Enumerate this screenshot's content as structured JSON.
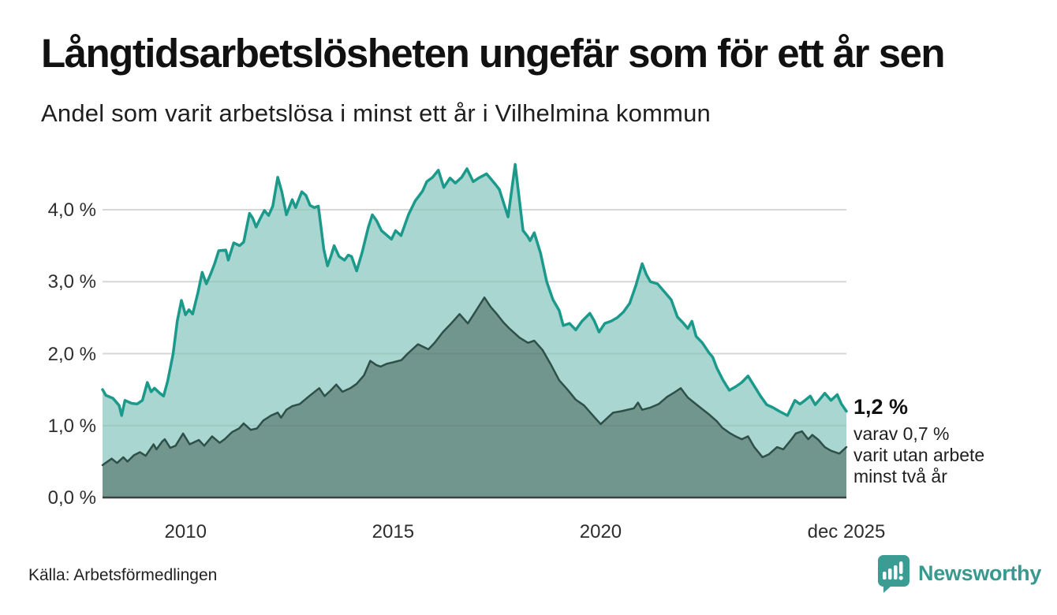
{
  "title": "Långtidsarbetslösheten ungefär som för ett år sen",
  "subtitle": "Andel som varit arbetslösa i minst ett år i Vilhelmina kommun",
  "source": "Källa: Arbetsförmedlingen",
  "annotation": {
    "headline": "1,2 %",
    "line1": "varav 0,7 %",
    "line2": "varit utan arbete",
    "line3": "minst två år"
  },
  "logo": {
    "wordmark": "Newsworthy"
  },
  "colors": {
    "accent_teal": "#1b9a8c",
    "light_fill": "#a9d6d0",
    "dark_fill": "#71968e",
    "dark_line": "#2f4f49",
    "grid": "#e4e4e4",
    "baseline": "#3f3f3f",
    "logo_teal": "#3b9c93"
  },
  "chart_data": {
    "type": "area",
    "title": "Långtidsarbetslösheten ungefär som för ett år sen",
    "subtitle": "Andel som varit arbetslösa i minst ett år i Vilhelmina kommun",
    "x_unit": "decimal_year",
    "y_unit": "percent",
    "xlim": [
      2008.0,
      2025.92
    ],
    "ylim": [
      0,
      4.75
    ],
    "grid": true,
    "legend": false,
    "resolution_note": "monthly series, values estimated from plot",
    "last_point_label": "1,2 %",
    "last_point_secondary": "0,7 %",
    "yticks": [
      {
        "value": 0,
        "label": "0,0 %"
      },
      {
        "value": 1,
        "label": "1,0 %"
      },
      {
        "value": 2,
        "label": "2,0 %"
      },
      {
        "value": 3,
        "label": "3,0 %"
      },
      {
        "value": 4,
        "label": "4,0 %"
      }
    ],
    "xticks": [
      {
        "value": 2010,
        "label": "2010"
      },
      {
        "value": 2015,
        "label": "2015"
      },
      {
        "value": 2020,
        "label": "2020"
      },
      {
        "value": 2025.92,
        "label": "dec 2025"
      }
    ],
    "series": [
      {
        "id": "min_one_year",
        "name": "Arbetslösa minst ett år",
        "line_color": "#1b9a8c",
        "fill_color": "#a9d6d0",
        "line_width": 3.5,
        "points": [
          [
            2008.0,
            1.5
          ],
          [
            2008.08,
            1.42
          ],
          [
            2008.25,
            1.38
          ],
          [
            2008.4,
            1.28
          ],
          [
            2008.46,
            1.14
          ],
          [
            2008.54,
            1.35
          ],
          [
            2008.7,
            1.31
          ],
          [
            2008.83,
            1.3
          ],
          [
            2008.96,
            1.35
          ],
          [
            2009.08,
            1.6
          ],
          [
            2009.17,
            1.47
          ],
          [
            2009.25,
            1.52
          ],
          [
            2009.38,
            1.45
          ],
          [
            2009.47,
            1.41
          ],
          [
            2009.57,
            1.62
          ],
          [
            2009.7,
            2.0
          ],
          [
            2009.8,
            2.45
          ],
          [
            2009.9,
            2.74
          ],
          [
            2010.0,
            2.54
          ],
          [
            2010.08,
            2.61
          ],
          [
            2010.17,
            2.55
          ],
          [
            2010.3,
            2.85
          ],
          [
            2010.4,
            3.13
          ],
          [
            2010.5,
            2.97
          ],
          [
            2010.6,
            3.1
          ],
          [
            2010.7,
            3.25
          ],
          [
            2010.8,
            3.43
          ],
          [
            2010.97,
            3.44
          ],
          [
            2011.03,
            3.3
          ],
          [
            2011.16,
            3.54
          ],
          [
            2011.3,
            3.5
          ],
          [
            2011.4,
            3.55
          ],
          [
            2011.54,
            3.95
          ],
          [
            2011.62,
            3.88
          ],
          [
            2011.7,
            3.76
          ],
          [
            2011.8,
            3.88
          ],
          [
            2011.9,
            3.99
          ],
          [
            2012.0,
            3.92
          ],
          [
            2012.1,
            4.05
          ],
          [
            2012.22,
            4.45
          ],
          [
            2012.32,
            4.25
          ],
          [
            2012.43,
            3.93
          ],
          [
            2012.57,
            4.14
          ],
          [
            2012.65,
            4.03
          ],
          [
            2012.8,
            4.25
          ],
          [
            2012.9,
            4.2
          ],
          [
            2013.0,
            4.06
          ],
          [
            2013.1,
            4.03
          ],
          [
            2013.2,
            4.05
          ],
          [
            2013.33,
            3.45
          ],
          [
            2013.42,
            3.22
          ],
          [
            2013.5,
            3.35
          ],
          [
            2013.58,
            3.5
          ],
          [
            2013.7,
            3.35
          ],
          [
            2013.83,
            3.3
          ],
          [
            2013.92,
            3.37
          ],
          [
            2014.0,
            3.35
          ],
          [
            2014.12,
            3.15
          ],
          [
            2014.25,
            3.4
          ],
          [
            2014.4,
            3.75
          ],
          [
            2014.5,
            3.93
          ],
          [
            2014.6,
            3.85
          ],
          [
            2014.72,
            3.71
          ],
          [
            2014.96,
            3.59
          ],
          [
            2015.06,
            3.71
          ],
          [
            2015.19,
            3.64
          ],
          [
            2015.37,
            3.93
          ],
          [
            2015.53,
            4.12
          ],
          [
            2015.71,
            4.26
          ],
          [
            2015.81,
            4.39
          ],
          [
            2015.95,
            4.45
          ],
          [
            2016.09,
            4.55
          ],
          [
            2016.22,
            4.31
          ],
          [
            2016.37,
            4.44
          ],
          [
            2016.5,
            4.37
          ],
          [
            2016.65,
            4.45
          ],
          [
            2016.78,
            4.57
          ],
          [
            2016.93,
            4.39
          ],
          [
            2017.06,
            4.44
          ],
          [
            2017.25,
            4.5
          ],
          [
            2017.47,
            4.35
          ],
          [
            2017.56,
            4.28
          ],
          [
            2017.77,
            3.9
          ],
          [
            2017.94,
            4.63
          ],
          [
            2018.13,
            3.71
          ],
          [
            2018.24,
            3.63
          ],
          [
            2018.3,
            3.57
          ],
          [
            2018.4,
            3.68
          ],
          [
            2018.55,
            3.4
          ],
          [
            2018.7,
            3.0
          ],
          [
            2018.85,
            2.75
          ],
          [
            2019.0,
            2.6
          ],
          [
            2019.1,
            2.39
          ],
          [
            2019.25,
            2.42
          ],
          [
            2019.4,
            2.33
          ],
          [
            2019.55,
            2.45
          ],
          [
            2019.74,
            2.56
          ],
          [
            2019.85,
            2.45
          ],
          [
            2019.96,
            2.3
          ],
          [
            2020.1,
            2.42
          ],
          [
            2020.25,
            2.45
          ],
          [
            2020.4,
            2.5
          ],
          [
            2020.55,
            2.58
          ],
          [
            2020.7,
            2.7
          ],
          [
            2020.85,
            2.95
          ],
          [
            2021.0,
            3.25
          ],
          [
            2021.1,
            3.1
          ],
          [
            2021.2,
            3.0
          ],
          [
            2021.37,
            2.97
          ],
          [
            2021.55,
            2.85
          ],
          [
            2021.7,
            2.75
          ],
          [
            2021.85,
            2.51
          ],
          [
            2022.0,
            2.42
          ],
          [
            2022.1,
            2.35
          ],
          [
            2022.2,
            2.45
          ],
          [
            2022.3,
            2.24
          ],
          [
            2022.45,
            2.15
          ],
          [
            2022.6,
            2.02
          ],
          [
            2022.7,
            1.95
          ],
          [
            2022.8,
            1.8
          ],
          [
            2022.95,
            1.63
          ],
          [
            2023.1,
            1.49
          ],
          [
            2023.25,
            1.54
          ],
          [
            2023.4,
            1.6
          ],
          [
            2023.55,
            1.69
          ],
          [
            2023.7,
            1.55
          ],
          [
            2023.85,
            1.41
          ],
          [
            2024.0,
            1.29
          ],
          [
            2024.15,
            1.25
          ],
          [
            2024.3,
            1.2
          ],
          [
            2024.5,
            1.14
          ],
          [
            2024.68,
            1.35
          ],
          [
            2024.8,
            1.3
          ],
          [
            2024.9,
            1.34
          ],
          [
            2025.05,
            1.41
          ],
          [
            2025.17,
            1.29
          ],
          [
            2025.3,
            1.38
          ],
          [
            2025.4,
            1.45
          ],
          [
            2025.55,
            1.35
          ],
          [
            2025.7,
            1.43
          ],
          [
            2025.8,
            1.3
          ],
          [
            2025.92,
            1.2
          ]
        ]
      },
      {
        "id": "min_two_years",
        "name": "varav arbetslösa minst två år",
        "line_color": "#2f4f49",
        "fill_color": "#71968e",
        "line_width": 2.5,
        "points": [
          [
            2008.0,
            0.45
          ],
          [
            2008.22,
            0.54
          ],
          [
            2008.35,
            0.48
          ],
          [
            2008.5,
            0.56
          ],
          [
            2008.6,
            0.5
          ],
          [
            2008.76,
            0.59
          ],
          [
            2008.9,
            0.63
          ],
          [
            2009.04,
            0.58
          ],
          [
            2009.23,
            0.74
          ],
          [
            2009.3,
            0.67
          ],
          [
            2009.44,
            0.78
          ],
          [
            2009.5,
            0.81
          ],
          [
            2009.63,
            0.69
          ],
          [
            2009.76,
            0.72
          ],
          [
            2009.94,
            0.89
          ],
          [
            2010.1,
            0.74
          ],
          [
            2010.32,
            0.8
          ],
          [
            2010.45,
            0.72
          ],
          [
            2010.64,
            0.85
          ],
          [
            2010.82,
            0.76
          ],
          [
            2010.94,
            0.81
          ],
          [
            2011.12,
            0.91
          ],
          [
            2011.29,
            0.96
          ],
          [
            2011.4,
            1.03
          ],
          [
            2011.57,
            0.94
          ],
          [
            2011.72,
            0.96
          ],
          [
            2011.87,
            1.07
          ],
          [
            2012.06,
            1.14
          ],
          [
            2012.22,
            1.18
          ],
          [
            2012.3,
            1.11
          ],
          [
            2012.43,
            1.22
          ],
          [
            2012.57,
            1.27
          ],
          [
            2012.75,
            1.3
          ],
          [
            2012.98,
            1.41
          ],
          [
            2013.22,
            1.52
          ],
          [
            2013.35,
            1.41
          ],
          [
            2013.5,
            1.49
          ],
          [
            2013.63,
            1.57
          ],
          [
            2013.78,
            1.47
          ],
          [
            2013.97,
            1.52
          ],
          [
            2014.12,
            1.58
          ],
          [
            2014.3,
            1.7
          ],
          [
            2014.45,
            1.9
          ],
          [
            2014.6,
            1.84
          ],
          [
            2014.7,
            1.82
          ],
          [
            2014.85,
            1.86
          ],
          [
            2015.0,
            1.88
          ],
          [
            2015.2,
            1.91
          ],
          [
            2015.35,
            2.0
          ],
          [
            2015.6,
            2.13
          ],
          [
            2015.85,
            2.06
          ],
          [
            2016.0,
            2.15
          ],
          [
            2016.2,
            2.3
          ],
          [
            2016.4,
            2.42
          ],
          [
            2016.6,
            2.55
          ],
          [
            2016.8,
            2.42
          ],
          [
            2017.0,
            2.6
          ],
          [
            2017.2,
            2.78
          ],
          [
            2017.35,
            2.65
          ],
          [
            2017.5,
            2.55
          ],
          [
            2017.65,
            2.44
          ],
          [
            2017.8,
            2.35
          ],
          [
            2018.05,
            2.22
          ],
          [
            2018.25,
            2.15
          ],
          [
            2018.4,
            2.18
          ],
          [
            2018.6,
            2.05
          ],
          [
            2018.8,
            1.85
          ],
          [
            2019.0,
            1.63
          ],
          [
            2019.2,
            1.5
          ],
          [
            2019.4,
            1.36
          ],
          [
            2019.6,
            1.28
          ],
          [
            2019.8,
            1.15
          ],
          [
            2020.0,
            1.02
          ],
          [
            2020.15,
            1.1
          ],
          [
            2020.3,
            1.18
          ],
          [
            2020.5,
            1.2
          ],
          [
            2020.8,
            1.24
          ],
          [
            2020.9,
            1.32
          ],
          [
            2021.0,
            1.22
          ],
          [
            2021.2,
            1.25
          ],
          [
            2021.4,
            1.3
          ],
          [
            2021.6,
            1.4
          ],
          [
            2021.8,
            1.47
          ],
          [
            2021.93,
            1.52
          ],
          [
            2022.1,
            1.39
          ],
          [
            2022.25,
            1.32
          ],
          [
            2022.4,
            1.25
          ],
          [
            2022.6,
            1.16
          ],
          [
            2022.8,
            1.06
          ],
          [
            2022.93,
            0.97
          ],
          [
            2023.1,
            0.9
          ],
          [
            2023.25,
            0.85
          ],
          [
            2023.4,
            0.81
          ],
          [
            2023.55,
            0.85
          ],
          [
            2023.7,
            0.7
          ],
          [
            2023.9,
            0.56
          ],
          [
            2024.05,
            0.6
          ],
          [
            2024.25,
            0.7
          ],
          [
            2024.4,
            0.67
          ],
          [
            2024.6,
            0.81
          ],
          [
            2024.7,
            0.89
          ],
          [
            2024.85,
            0.92
          ],
          [
            2025.0,
            0.81
          ],
          [
            2025.1,
            0.87
          ],
          [
            2025.25,
            0.8
          ],
          [
            2025.4,
            0.7
          ],
          [
            2025.55,
            0.65
          ],
          [
            2025.75,
            0.61
          ],
          [
            2025.92,
            0.7
          ]
        ]
      }
    ]
  }
}
